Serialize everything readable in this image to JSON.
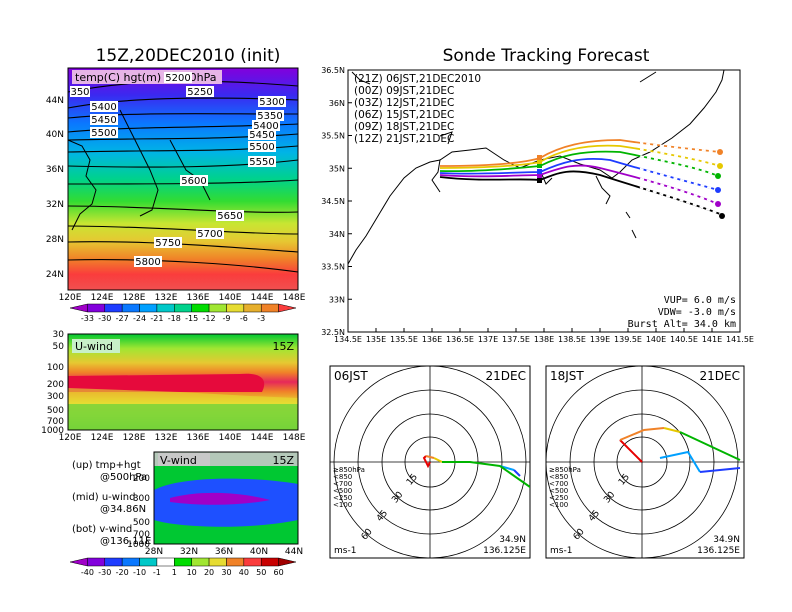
{
  "left": {
    "title": "15Z,20DEC2010 (init)",
    "map": {
      "label": "temp(C) hgt(m) @500hPa",
      "lat_labels": [
        "44N",
        "40N",
        "36N",
        "32N",
        "28N",
        "24N"
      ],
      "lon_labels": [
        "120E",
        "124E",
        "128E",
        "132E",
        "136E",
        "140E",
        "144E",
        "148E"
      ],
      "contour_labels": [
        "5200",
        "5250",
        "5300",
        "5350",
        "5400",
        "5450",
        "5500",
        "5550",
        "5600",
        "5650",
        "5700",
        "5750",
        "5800",
        "5400",
        "5450",
        "5500",
        "350"
      ],
      "colorbar_labels": [
        "-33",
        "-30",
        "-27",
        "-24",
        "-21",
        "-18",
        "-15",
        "-12",
        "-9",
        "-6",
        "-3"
      ],
      "colorbar_colors": [
        "#a000c8",
        "#8200dc",
        "#1e3cff",
        "#0a78ff",
        "#00a0ff",
        "#00c8c8",
        "#00d28c",
        "#00dc00",
        "#a0e632",
        "#e6dc32",
        "#e6af2d",
        "#f08228",
        "#fa3c3c"
      ]
    },
    "uwind": {
      "label": "U-wind",
      "time": "15Z",
      "y_ticks": [
        "30",
        "50",
        "100",
        "200",
        "300",
        "500",
        "700",
        "1000"
      ],
      "x_ticks": [
        "120E",
        "124E",
        "128E",
        "132E",
        "136E",
        "140E",
        "144E",
        "148E"
      ]
    },
    "vwind": {
      "label": "V-wind",
      "time": "15Z",
      "y_ticks": [
        "200",
        "300",
        "500",
        "700",
        "1000"
      ],
      "x_ticks": [
        "28N",
        "32N",
        "36N",
        "40N",
        "44N"
      ]
    },
    "legend": {
      "up1": "(up) tmp+hgt",
      "up2": "@500hPa",
      "mid1": "(mid) u-wind",
      "mid2": "@34.86N",
      "bot1": "(bot) v-wind",
      "bot2": "@136.11E"
    },
    "wind_colorbar_labels": [
      "-40",
      "-30",
      "-20",
      "-10",
      "-1",
      "1",
      "10",
      "20",
      "30",
      "40",
      "50",
      "60"
    ],
    "wind_colorbar_colors": [
      "#a000c8",
      "#8200dc",
      "#1e3cff",
      "#0a78ff",
      "#00c8c8",
      "#fff",
      "#00dc00",
      "#a0e632",
      "#e6dc32",
      "#f08228",
      "#fa3c3c",
      "#c80000",
      "#a00000"
    ]
  },
  "track": {
    "title": "Sonde Tracking Forecast",
    "y_ticks": [
      "36.5N",
      "36N",
      "35.5N",
      "35N",
      "34.5N",
      "34N",
      "33.5N",
      "33N",
      "32.5N"
    ],
    "x_ticks": [
      "134.5E",
      "135E",
      "135.5E",
      "136E",
      "136.5E",
      "137E",
      "137.5E",
      "138E",
      "138.5E",
      "139E",
      "139.5E",
      "140E",
      "140.5E",
      "141E",
      "141.5E"
    ],
    "legend": [
      {
        "label": "(21Z)  06JST,21DEC2010",
        "color": "#000000"
      },
      {
        "label": "(00Z)  09JST,21DEC",
        "color": "#a000c8"
      },
      {
        "label": "(03Z)  12JST,21DEC",
        "color": "#1e3cff"
      },
      {
        "label": "(06Z)  15JST,21DEC",
        "color": "#00b400"
      },
      {
        "label": "(09Z)  18JST,21DEC",
        "color": "#e6c800"
      },
      {
        "label": "(12Z)  21JST,21DEC",
        "color": "#f08228"
      }
    ],
    "vup": "VUP=  6.0  m/s",
    "vdw": "VDW=  -3.0  m/s",
    "burst": "Burst Alt=  34.0  km"
  },
  "hodo": [
    {
      "time": "06JST",
      "date": "21DEC",
      "lat": "34.9N",
      "lon": "136.125E",
      "unit": "ms-1",
      "rings": [
        "15",
        "30",
        "45",
        "60"
      ]
    },
    {
      "time": "18JST",
      "date": "21DEC",
      "lat": "34.9N",
      "lon": "136.125E",
      "unit": "ms-1",
      "rings": [
        "15",
        "30",
        "45",
        "60"
      ]
    }
  ],
  "hodo_legend": [
    {
      "label": "≥850hPa",
      "color": "#e60000"
    },
    {
      "label": "<850",
      "color": "#f08228"
    },
    {
      "label": "<700",
      "color": "#e6c800"
    },
    {
      "label": "<500",
      "color": "#00b400"
    },
    {
      "label": "<250",
      "color": "#00a0ff"
    },
    {
      "label": "<100",
      "color": "#1e3cff"
    }
  ]
}
